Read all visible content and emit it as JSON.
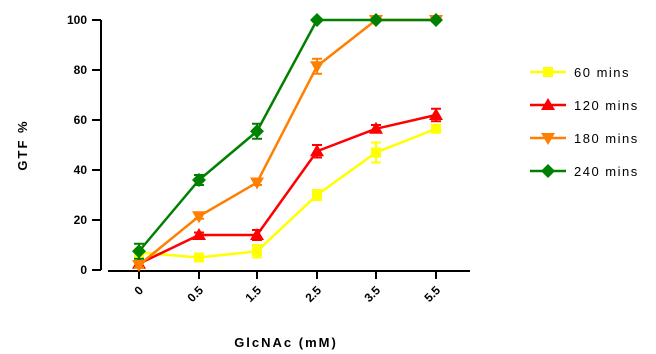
{
  "chart_data": {
    "type": "line",
    "title": "",
    "xlabel": "GlcNAc (mM)",
    "ylabel": "GTF %",
    "categories": [
      "0",
      "0.5",
      "1.5",
      "2.5",
      "3.5",
      "5.5"
    ],
    "ylim": [
      0,
      100
    ],
    "yticks": [
      "0",
      "20",
      "40",
      "60",
      "80",
      "100"
    ],
    "legend_position": "right",
    "grid": false,
    "series": [
      {
        "name": "60 mins",
        "color": "#FFFF00",
        "marker": "square",
        "values": [
          7,
          5,
          7.5,
          30,
          47,
          56.5
        ],
        "errors": [
          1,
          1,
          2.5,
          2,
          4,
          1.5
        ]
      },
      {
        "name": "120 mins",
        "color": "#FF0000",
        "marker": "triangle-up",
        "values": [
          2.5,
          14,
          14,
          47.5,
          56.5,
          62
        ],
        "errors": [
          1,
          1,
          2,
          2.5,
          1.5,
          2.5
        ]
      },
      {
        "name": "180 mins",
        "color": "#FF8000",
        "marker": "triangle-down",
        "values": [
          2,
          21.5,
          35,
          81.5,
          100,
          100
        ],
        "errors": [
          1,
          1,
          1,
          3,
          0.5,
          0.5
        ]
      },
      {
        "name": "240 mins",
        "color": "#008000",
        "marker": "diamond",
        "values": [
          7.5,
          36,
          55.5,
          100,
          100,
          100
        ],
        "errors": [
          3,
          2,
          3,
          0.5,
          0.5,
          0.5
        ]
      }
    ]
  }
}
